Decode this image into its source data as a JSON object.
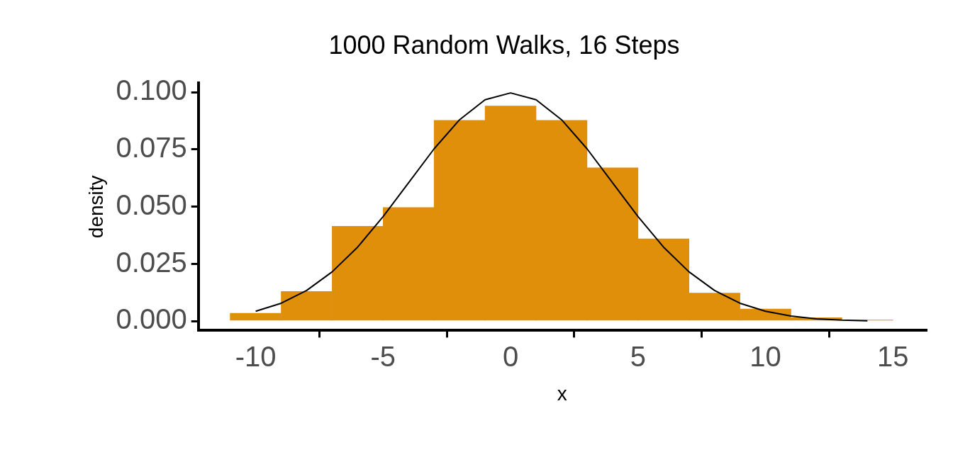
{
  "chart_data": {
    "type": "histogram",
    "title": "1000 Random Walks, 16 Steps",
    "xlabel": "x",
    "ylabel": "density",
    "bins": [
      -11,
      -9,
      -7,
      -5,
      -3,
      -1,
      1,
      3,
      5,
      7,
      9,
      11,
      13,
      15
    ],
    "series": [
      {
        "type": "histogram",
        "color": "#df8f0a",
        "values": [
          0.0035,
          0.013,
          0.0415,
          0.0497,
          0.0877,
          0.094,
          0.0877,
          0.067,
          0.036,
          0.0123,
          0.0054,
          0.0016,
          0.0006
        ]
      },
      {
        "type": "line",
        "color": "#000000",
        "x": [
          -10,
          -9,
          -8,
          -7,
          -6,
          -5,
          -4,
          -3,
          -2,
          -1,
          0,
          1,
          2,
          3,
          4,
          5,
          6,
          7,
          8,
          9,
          10,
          11,
          12,
          13,
          14
        ],
        "values": [
          0.0044,
          0.0079,
          0.0135,
          0.0216,
          0.0324,
          0.0457,
          0.0605,
          0.0753,
          0.088,
          0.0967,
          0.0997,
          0.0967,
          0.088,
          0.0753,
          0.0605,
          0.0457,
          0.0324,
          0.0216,
          0.0135,
          0.0079,
          0.0044,
          0.0023,
          0.0011,
          0.0005,
          0.0002
        ]
      }
    ],
    "xlim": [
      -12.25,
      16.3
    ],
    "xticks": [
      -10,
      -5,
      0,
      5,
      10,
      15
    ],
    "ylim": [
      -0.004,
      0.104
    ],
    "yticks": [
      {
        "value": 0,
        "label": "0.000"
      },
      {
        "value": 0.025,
        "label": "0.025"
      },
      {
        "value": 0.05,
        "label": "0.050"
      },
      {
        "value": 0.075,
        "label": "0.075"
      },
      {
        "value": 0.1,
        "label": "0.100"
      }
    ],
    "grid": false,
    "legend": false,
    "marker": "none",
    "line_style": "solid"
  }
}
